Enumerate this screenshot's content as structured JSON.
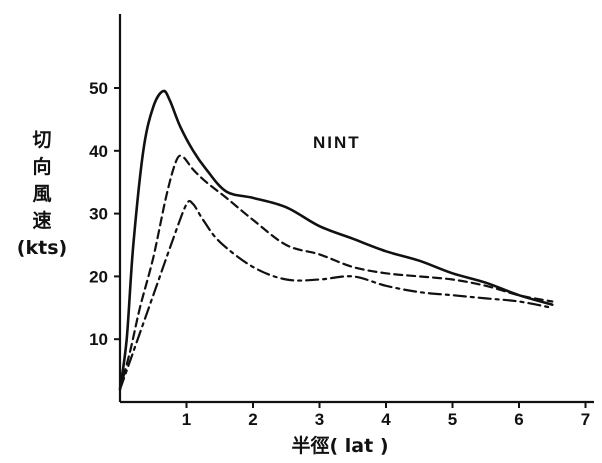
{
  "chart_data": {
    "type": "line",
    "title": "",
    "annotation": "NINT",
    "xlabel": "半徑( lat )",
    "ylabel_lines": [
      "切",
      "向",
      "風",
      "速",
      "(kts)"
    ],
    "xlim": [
      0,
      7.2
    ],
    "ylim": [
      0,
      60
    ],
    "x_ticks": [
      1,
      2,
      3,
      4,
      5,
      6,
      7
    ],
    "y_ticks": [
      10,
      20,
      30,
      40,
      50
    ],
    "grid": false,
    "legend": "none",
    "series": [
      {
        "style": "solid",
        "x": [
          0.0,
          0.1,
          0.2,
          0.35,
          0.5,
          0.65,
          0.75,
          0.9,
          1.1,
          1.3,
          1.6,
          2.0,
          2.5,
          3.0,
          3.5,
          4.0,
          4.5,
          5.0,
          5.5,
          6.0,
          6.5
        ],
        "y": [
          2,
          10,
          25,
          40,
          47,
          49.5,
          48,
          44,
          40,
          37,
          33.5,
          32.5,
          31,
          28,
          26,
          24,
          22.5,
          20.5,
          19,
          17,
          15.5
        ]
      },
      {
        "style": "dashed",
        "x": [
          0.0,
          0.15,
          0.3,
          0.5,
          0.7,
          0.85,
          0.95,
          1.1,
          1.3,
          1.6,
          2.0,
          2.5,
          3.0,
          3.5,
          4.0,
          4.5,
          5.0,
          5.5,
          6.0,
          6.5
        ],
        "y": [
          2,
          8,
          15,
          23,
          33,
          38.5,
          39,
          37,
          35,
          32.5,
          29,
          25,
          23.5,
          21.5,
          20.5,
          20,
          19.5,
          18.5,
          17,
          16
        ]
      },
      {
        "style": "dash-dot",
        "x": [
          0.0,
          0.2,
          0.4,
          0.6,
          0.8,
          1.0,
          1.1,
          1.25,
          1.5,
          2.0,
          2.5,
          3.0,
          3.5,
          4.0,
          4.5,
          5.0,
          5.5,
          6.0,
          6.5
        ],
        "y": [
          2,
          8,
          14,
          20,
          26,
          31.5,
          31.5,
          29,
          25.5,
          21.5,
          19.5,
          19.5,
          20,
          18.5,
          17.5,
          17,
          16.5,
          16,
          15
        ]
      }
    ]
  }
}
